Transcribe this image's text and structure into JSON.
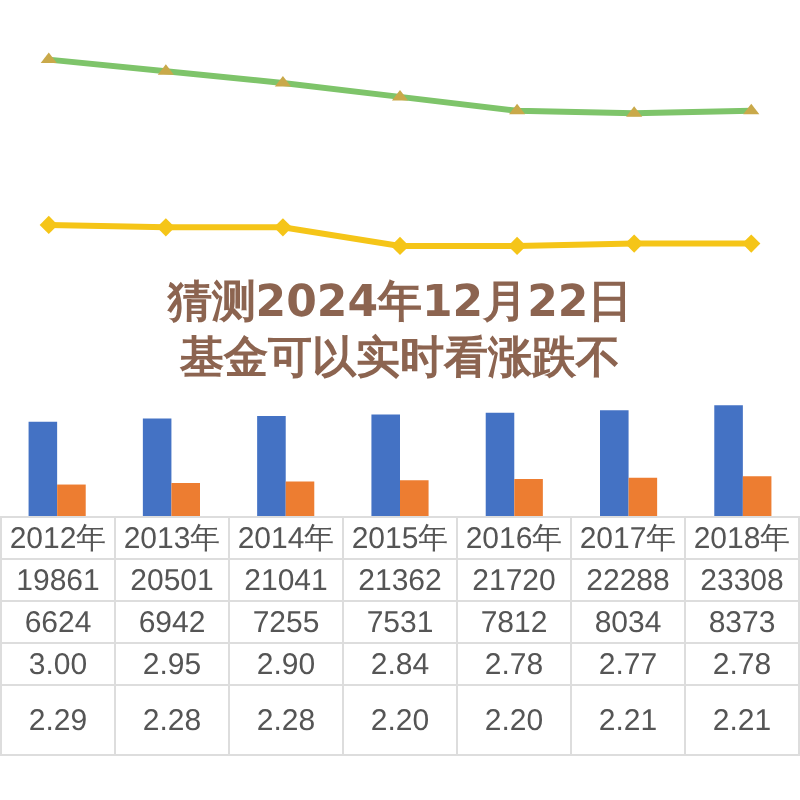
{
  "chart_data": [
    {
      "type": "line",
      "categories": [
        null,
        null,
        null,
        null,
        null,
        null,
        null
      ],
      "data_labels": true,
      "series": [
        {
          "color": "#7ec46a",
          "marker": "triangle",
          "values": [
            3.0,
            2.95,
            2.9,
            2.84,
            2.78,
            2.77,
            2.78
          ],
          "value_labels": [
            "3.00",
            "2.95",
            "2.90",
            "2.84",
            "2.78",
            "2.77",
            "2.78"
          ]
        },
        {
          "color": "#f5c518",
          "marker": "diamond",
          "values": [
            2.29,
            2.28,
            2.28,
            2.2,
            2.2,
            2.21,
            2.21
          ],
          "value_labels": [
            "2.29",
            "2.28",
            "2.28",
            "2.20",
            "2.20",
            "2.21",
            "2.21"
          ]
        }
      ]
    },
    {
      "type": "bar",
      "title": "猜测2024年12月22日基金可以实时看涨跌不",
      "categories": [
        "2012年",
        "2013年",
        "2014年",
        "2015年",
        "2016年",
        "2017年",
        "2018年"
      ],
      "data_labels": true,
      "series": [
        {
          "color": "#4472c4",
          "values": [
            19861,
            20501,
            21041,
            21362,
            21720,
            22288,
            23308
          ]
        },
        {
          "color": "#ed7d31",
          "values": [
            6624,
            6942,
            7255,
            7531,
            7812,
            8034,
            8373
          ]
        }
      ]
    }
  ]
}
